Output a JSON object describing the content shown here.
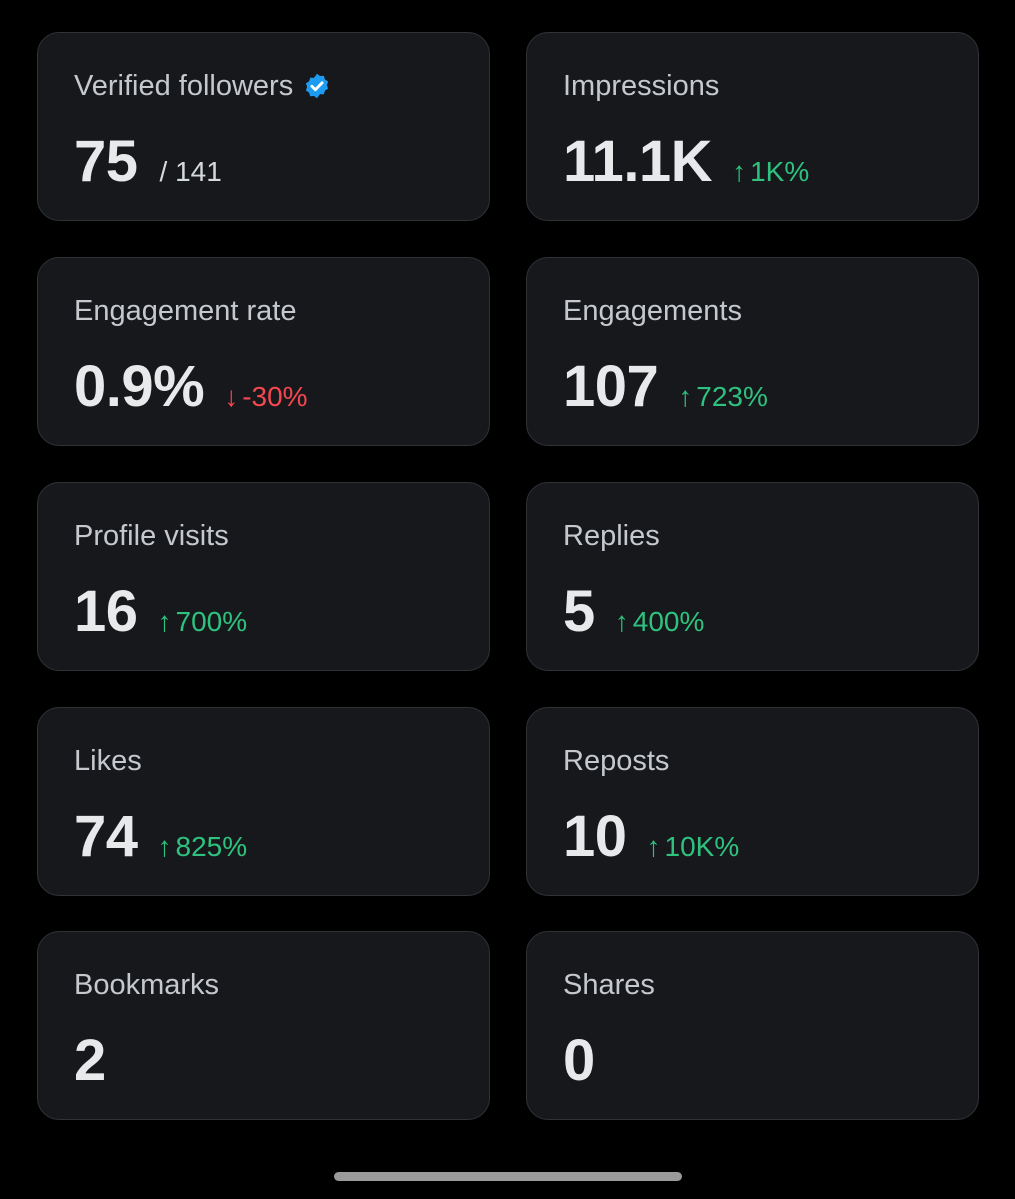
{
  "cards": [
    {
      "label": "Verified followers",
      "value": "75",
      "suffix": "/ 141",
      "change": "",
      "direction": "",
      "verified_badge": true
    },
    {
      "label": "Impressions",
      "value": "11.1K",
      "suffix": "",
      "change": "1K%",
      "direction": "up"
    },
    {
      "label": "Engagement rate",
      "value": "0.9%",
      "suffix": "",
      "change": "-30%",
      "direction": "down"
    },
    {
      "label": "Engagements",
      "value": "107",
      "suffix": "",
      "change": "723%",
      "direction": "up"
    },
    {
      "label": "Profile visits",
      "value": "16",
      "suffix": "",
      "change": "700%",
      "direction": "up"
    },
    {
      "label": "Replies",
      "value": "5",
      "suffix": "",
      "change": "400%",
      "direction": "up"
    },
    {
      "label": "Likes",
      "value": "74",
      "suffix": "",
      "change": "825%",
      "direction": "up"
    },
    {
      "label": "Reposts",
      "value": "10",
      "suffix": "",
      "change": "10K%",
      "direction": "up"
    },
    {
      "label": "Bookmarks",
      "value": "2",
      "suffix": "",
      "change": "",
      "direction": ""
    },
    {
      "label": "Shares",
      "value": "0",
      "suffix": "",
      "change": "",
      "direction": ""
    }
  ],
  "icons": {
    "verified": "verified-check-badge-icon",
    "up": "arrow-up-icon",
    "down": "arrow-down-icon"
  },
  "colors": {
    "up": "#2ec27e",
    "down": "#f4474f",
    "verified": "#1d9bf0"
  }
}
